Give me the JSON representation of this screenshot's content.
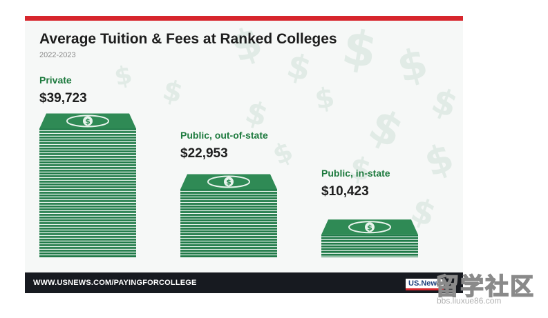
{
  "chart_data": {
    "type": "bar",
    "title": "Average Tuition & Fees at Ranked Colleges",
    "subtitle": "2022-2023",
    "categories": [
      "Private",
      "Public, out-of-state",
      "Public, in-state"
    ],
    "values": [
      39723,
      22953,
      10423
    ],
    "value_labels": [
      "$39,723",
      "$22,953",
      "$10,423"
    ],
    "ylim": [
      0,
      40000
    ],
    "bar_style": "stacks of dollar bills",
    "colors": {
      "bill_top": "#2f8a55",
      "bill_dark": "#1f7a48",
      "bill_light": "#e8f3ec",
      "label": "#1d7a3e",
      "accent_bar": "#d7262d"
    }
  },
  "footer": {
    "url": "WWW.USNEWS.COM/PAYINGFORCOLLEGE",
    "logo": "US.News"
  },
  "watermark": {
    "characters": "留学社区",
    "url": "bbs.liuxue86.com"
  }
}
